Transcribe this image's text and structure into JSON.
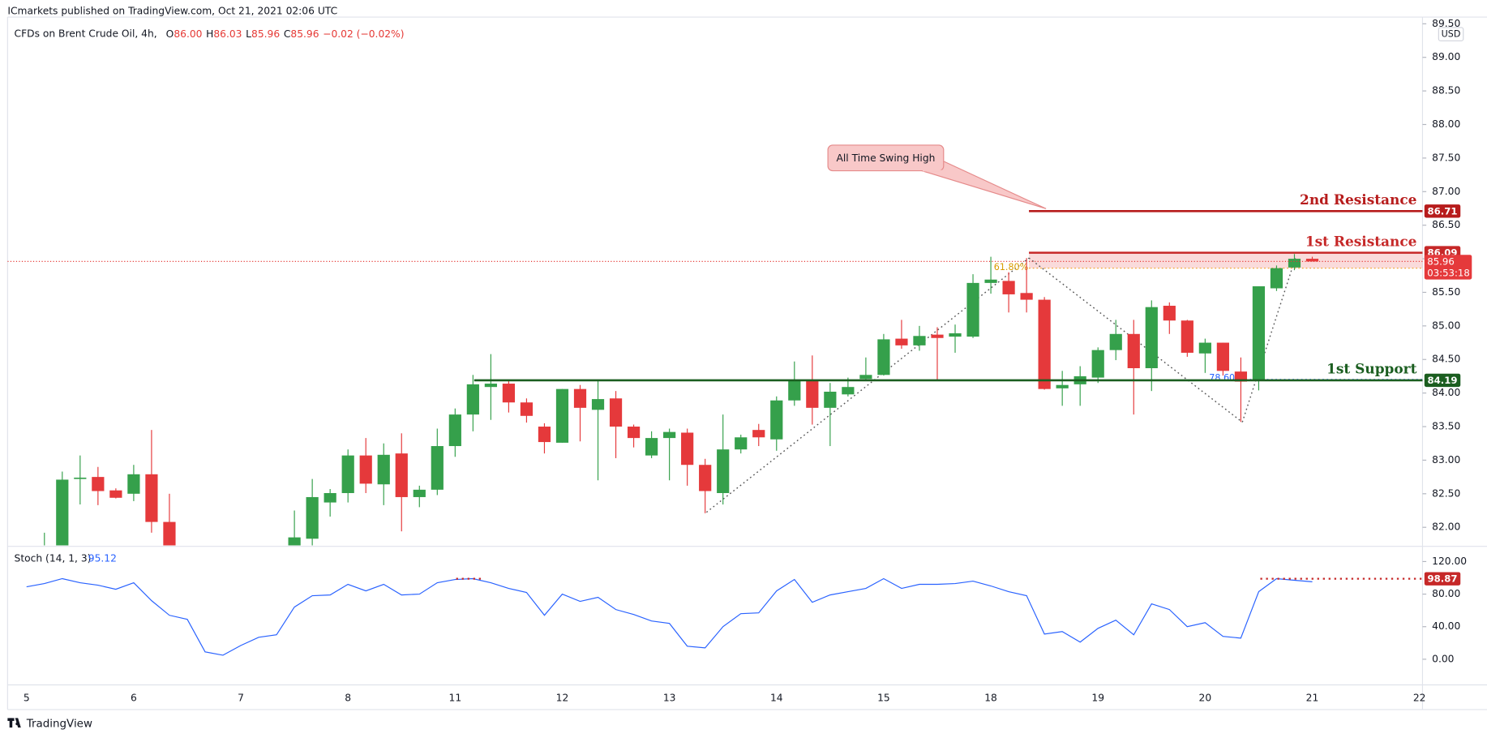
{
  "header": {
    "published": "ICmarkets published on TradingView.com, Oct 21, 2021 02:06 UTC",
    "symbol": "CFDs on Brent Crude Oil, 4h,",
    "ohlc": [
      {
        "key": "O",
        "value": "86.00"
      },
      {
        "key": "H",
        "value": "86.03"
      },
      {
        "key": "L",
        "value": "85.96"
      },
      {
        "key": "C",
        "value": "85.96"
      }
    ],
    "change": "−0.02 (−0.02%)"
  },
  "footer": "TradingView",
  "chart_data": [
    {
      "type": "candlestick",
      "currency": "USD",
      "up_color": "#35a04b",
      "down_color": "#e5393b",
      "grid": false,
      "categories": [
        "5",
        null,
        null,
        null,
        null,
        null,
        "6",
        null,
        null,
        null,
        null,
        null,
        "7",
        null,
        null,
        null,
        null,
        null,
        "8",
        null,
        null,
        null,
        null,
        null,
        "11",
        null,
        null,
        null,
        null,
        null,
        "12",
        null,
        null,
        null,
        null,
        null,
        "13",
        null,
        null,
        null,
        null,
        null,
        "14",
        null,
        null,
        null,
        null,
        null,
        "15",
        null,
        null,
        null,
        null,
        null,
        "18",
        null,
        null,
        null,
        null,
        null,
        "19",
        null,
        null,
        null,
        null,
        null,
        "20",
        null,
        null,
        null,
        null,
        null,
        "21",
        null,
        null,
        null,
        null,
        null,
        "22"
      ],
      "open": [
        null,
        81.5,
        81.7,
        82.72,
        82.75,
        82.55,
        82.5,
        82.79,
        82.08,
        null,
        null,
        null,
        null,
        null,
        null,
        81.65,
        81.83,
        82.37,
        82.51,
        83.07,
        82.64,
        83.1,
        82.45,
        82.56,
        83.21,
        83.68,
        84.09,
        84.14,
        83.86,
        83.5,
        83.26,
        84.06,
        83.75,
        83.92,
        83.5,
        83.07,
        83.33,
        83.41,
        82.93,
        82.51,
        83.16,
        83.45,
        83.31,
        83.89,
        84.2,
        83.78,
        83.98,
        84.21,
        84.27,
        84.81,
        84.71,
        84.87,
        84.84,
        84.84,
        85.64,
        85.67,
        85.49,
        85.39,
        84.07,
        84.13,
        84.23,
        84.64,
        84.88,
        84.37,
        85.3,
        85.08,
        84.59,
        84.75,
        84.32,
        84.18,
        85.56,
        85.87,
        86.0,
        null,
        null,
        null,
        null,
        null,
        null
      ],
      "high": [
        null,
        81.92,
        82.83,
        83.07,
        82.9,
        82.58,
        82.93,
        83.45,
        82.5,
        null,
        null,
        null,
        null,
        null,
        null,
        82.25,
        82.72,
        82.57,
        83.16,
        83.33,
        83.25,
        83.4,
        82.62,
        83.47,
        83.77,
        84.27,
        84.58,
        84.19,
        83.92,
        83.55,
        84.06,
        84.12,
        84.19,
        84.03,
        83.53,
        83.43,
        83.47,
        83.47,
        83.02,
        83.68,
        83.38,
        83.54,
        83.95,
        84.47,
        84.56,
        84.15,
        84.23,
        84.53,
        84.88,
        85.09,
        85.0,
        84.98,
        85.02,
        85.77,
        86.03,
        85.8,
        86.01,
        85.43,
        84.33,
        84.4,
        84.68,
        85.09,
        85.09,
        85.38,
        85.35,
        85.09,
        84.81,
        84.75,
        84.53,
        85.59,
        85.9,
        86.07,
        86.03,
        null,
        null,
        null,
        null,
        null,
        null
      ],
      "low": [
        null,
        81.3,
        81.6,
        82.34,
        82.33,
        82.43,
        82.39,
        81.92,
        81.4,
        null,
        null,
        null,
        null,
        null,
        null,
        81.5,
        81.7,
        82.16,
        82.37,
        82.51,
        82.33,
        81.94,
        82.3,
        82.48,
        83.05,
        83.43,
        83.6,
        83.71,
        83.56,
        83.1,
        83.26,
        83.28,
        82.7,
        83.03,
        83.19,
        83.03,
        82.7,
        82.62,
        82.21,
        82.34,
        83.1,
        83.21,
        83.14,
        83.81,
        83.53,
        83.21,
        83.95,
        84.2,
        84.26,
        84.66,
        84.63,
        84.19,
        84.6,
        84.82,
        85.48,
        85.2,
        85.2,
        84.05,
        83.81,
        83.81,
        84.15,
        84.49,
        83.68,
        84.03,
        84.88,
        84.54,
        84.3,
        84.26,
        83.57,
        84.04,
        85.52,
        85.83,
        85.96,
        null,
        null,
        null,
        null,
        null,
        null
      ],
      "close": [
        null,
        81.7,
        82.71,
        82.74,
        82.54,
        82.44,
        82.79,
        82.08,
        81.6,
        null,
        null,
        null,
        null,
        null,
        null,
        81.85,
        82.45,
        82.51,
        83.07,
        82.65,
        83.08,
        82.45,
        82.56,
        83.21,
        83.68,
        84.13,
        84.14,
        83.86,
        83.66,
        83.27,
        84.06,
        83.78,
        83.91,
        83.5,
        83.33,
        83.33,
        83.42,
        82.93,
        82.54,
        83.16,
        83.34,
        83.34,
        83.89,
        84.2,
        83.78,
        84.02,
        84.09,
        84.27,
        84.8,
        84.71,
        84.85,
        84.82,
        84.89,
        85.64,
        85.69,
        85.47,
        85.39,
        84.06,
        84.12,
        84.25,
        84.64,
        84.88,
        84.37,
        85.28,
        85.08,
        84.6,
        84.75,
        84.33,
        84.17,
        85.59,
        85.86,
        86.0,
        85.96,
        null,
        null,
        null,
        null,
        null,
        null
      ],
      "ylim": [
        81.73,
        89.6
      ],
      "yticks": [
        {
          "value": 82,
          "label": "82.00"
        },
        {
          "value": 82.5,
          "label": "82.50"
        },
        {
          "value": 83,
          "label": "83.00"
        },
        {
          "value": 83.5,
          "label": "83.50"
        },
        {
          "value": 84,
          "label": "84.00"
        },
        {
          "value": 84.5,
          "label": "84.50"
        },
        {
          "value": 85,
          "label": "85.00"
        },
        {
          "value": 85.5,
          "label": "85.50"
        },
        {
          "value": 86,
          "label": "86.00"
        },
        {
          "value": 86.5,
          "label": "86.50"
        },
        {
          "value": 87,
          "label": "87.00"
        },
        {
          "value": 87.5,
          "label": "87.50"
        },
        {
          "value": 88,
          "label": "88.00"
        },
        {
          "value": 88.5,
          "label": "88.50"
        },
        {
          "value": 89,
          "label": "89.00"
        },
        {
          "value": 89.5,
          "label": "89.50"
        }
      ],
      "levels": [
        {
          "name": "2nd Resistance",
          "value": 86.71,
          "color": "#b71c1c"
        },
        {
          "name": "1st Resistance",
          "value": 86.09,
          "color": "#c62828",
          "zone_low": 85.86
        },
        {
          "name": "1st Support",
          "value": 84.19,
          "color": "#1b5e20"
        }
      ],
      "countdown": "03:53:18",
      "annotations": {
        "callout": "All Time Swing High",
        "fib_a": "61.80%",
        "fib_b": "78.60%"
      }
    },
    {
      "type": "line",
      "title": "Stoch (14, 1, 3)",
      "color": "#2962ff",
      "threshold": 98.87,
      "threshold_color": "#c62828",
      "values": [
        89,
        93,
        99,
        94,
        91,
        86,
        94,
        72,
        54,
        49,
        9,
        5,
        17,
        27,
        30,
        64,
        78,
        79,
        92,
        84,
        92,
        79,
        80,
        94,
        98,
        99,
        94,
        87,
        82,
        54,
        80,
        71,
        76,
        61,
        55,
        47,
        44,
        16,
        14,
        40,
        56,
        57,
        84,
        98,
        70,
        79,
        83,
        87,
        99,
        87,
        92,
        92,
        93,
        96,
        90,
        83,
        78,
        31,
        34,
        21,
        38,
        48,
        30,
        68,
        61,
        40,
        45,
        28,
        26,
        83,
        99,
        97,
        95.12,
        null,
        null,
        null,
        null,
        null,
        null
      ],
      "ylim": [
        -31.5,
        136.3
      ],
      "yticks": [
        {
          "value": 120,
          "label": "120.00"
        },
        {
          "value": 80,
          "label": "80.00"
        },
        {
          "value": 40,
          "label": "40.00"
        },
        {
          "value": 0,
          "label": "0.00"
        }
      ]
    }
  ]
}
